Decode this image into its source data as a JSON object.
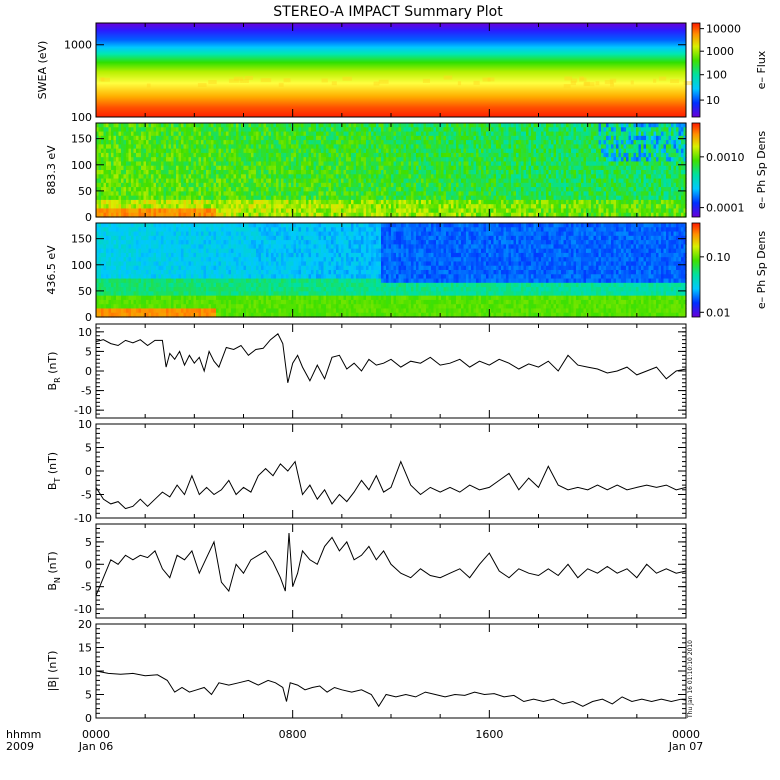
{
  "title": "STEREO-A IMPACT Summary Plot",
  "timestamp": "Thu Jan 16 01:10:10 2010",
  "x_axis": {
    "corner_labels": [
      "hhmm",
      "2009"
    ],
    "ticks": [
      {
        "time": "0000",
        "date": "Jan 06",
        "hour": 0
      },
      {
        "time": "0800",
        "date": "",
        "hour": 8
      },
      {
        "time": "1600",
        "date": "",
        "hour": 16
      },
      {
        "time": "0000",
        "date": "Jan 07",
        "hour": 24
      }
    ],
    "range_hours": [
      0,
      24
    ]
  },
  "colorbars": [
    {
      "label": "e– Flux",
      "ticks": [
        "10000",
        "1000",
        "100",
        "10"
      ]
    },
    {
      "label": "e– Ph Sp Dens",
      "ticks": [
        "0.0010",
        "0.0001"
      ]
    },
    {
      "label": "e– Ph Sp Dens",
      "ticks": [
        "0.10",
        "0.01"
      ]
    }
  ],
  "chart_data": [
    {
      "type": "heatmap",
      "ylabel": "SWEA (eV)",
      "yscale": "log",
      "ylim": [
        100,
        2000
      ],
      "yticks": [
        "1000",
        "100"
      ],
      "colorbar": {
        "label": "e– Flux",
        "scale": "log",
        "range": [
          5,
          15000
        ]
      }
    },
    {
      "type": "heatmap",
      "ylabel": "883.3 eV",
      "ylim": [
        0,
        180
      ],
      "yticks": [
        "150",
        "100",
        "50",
        "0"
      ],
      "colorbar": {
        "label": "e– Ph Sp Dens",
        "scale": "log",
        "range": [
          5e-05,
          0.004
        ]
      }
    },
    {
      "type": "heatmap",
      "ylabel": "436.5 eV",
      "ylim": [
        0,
        180
      ],
      "yticks": [
        "150",
        "100",
        "50",
        "0"
      ],
      "colorbar": {
        "label": "e– Ph Sp Dens",
        "scale": "log",
        "range": [
          0.008,
          0.4
        ]
      }
    },
    {
      "type": "line",
      "ylabel": "B",
      "ylabel_sub": "R",
      "ylabel_unit": "(nT)",
      "ylim": [
        -12,
        12
      ],
      "yticks": [
        "10",
        "5",
        "0",
        "-5",
        "-10"
      ],
      "x": [
        0,
        0.3,
        0.6,
        0.9,
        1.2,
        1.5,
        1.8,
        2.1,
        2.4,
        2.7,
        2.85,
        3.0,
        3.2,
        3.4,
        3.6,
        3.8,
        4.0,
        4.2,
        4.4,
        4.6,
        4.8,
        5.0,
        5.3,
        5.6,
        5.9,
        6.2,
        6.5,
        6.8,
        7.1,
        7.4,
        7.6,
        7.8,
        8.0,
        8.2,
        8.4,
        8.7,
        9.0,
        9.3,
        9.6,
        9.9,
        10.2,
        10.5,
        10.8,
        11.1,
        11.4,
        11.7,
        12.0,
        12.4,
        12.8,
        13.2,
        13.6,
        14.0,
        14.4,
        14.8,
        15.2,
        15.6,
        16.0,
        16.4,
        16.8,
        17.2,
        17.6,
        18.0,
        18.4,
        18.8,
        19.2,
        19.6,
        20.0,
        20.4,
        20.8,
        21.2,
        21.6,
        22.0,
        22.4,
        22.8,
        23.2,
        23.6,
        24.0
      ],
      "y": [
        7.5,
        8.0,
        7.0,
        6.5,
        7.8,
        7.2,
        8.0,
        6.5,
        7.8,
        7.8,
        1.0,
        4.5,
        3.0,
        5.0,
        1.5,
        4.0,
        2.0,
        3.5,
        0.0,
        5.0,
        2.5,
        1.0,
        6.0,
        5.5,
        6.5,
        4.0,
        5.5,
        5.8,
        8.0,
        9.5,
        7.0,
        -3.0,
        2.0,
        4.0,
        1.0,
        -2.5,
        1.5,
        -2.0,
        3.5,
        4.0,
        0.5,
        2.0,
        0.0,
        3.0,
        1.5,
        2.0,
        3.0,
        1.0,
        2.5,
        2.0,
        3.5,
        1.5,
        2.0,
        3.0,
        1.0,
        2.5,
        1.5,
        3.0,
        2.0,
        0.5,
        1.8,
        1.0,
        2.5,
        0.0,
        4.0,
        1.5,
        1.0,
        0.5,
        -0.5,
        0.0,
        1.0,
        -1.0,
        0.0,
        1.0,
        -2.0,
        0.0,
        0.5
      ]
    },
    {
      "type": "line",
      "ylabel": "B",
      "ylabel_sub": "T",
      "ylabel_unit": "(nT)",
      "ylim": [
        -10,
        10
      ],
      "yticks": [
        "10",
        "5",
        "0",
        "-5",
        "-10"
      ],
      "x": [
        0,
        0.3,
        0.6,
        0.9,
        1.2,
        1.5,
        1.8,
        2.1,
        2.4,
        2.7,
        3.0,
        3.3,
        3.6,
        3.9,
        4.2,
        4.5,
        4.8,
        5.1,
        5.4,
        5.7,
        6.0,
        6.3,
        6.6,
        6.9,
        7.2,
        7.5,
        7.8,
        8.1,
        8.4,
        8.7,
        9.0,
        9.3,
        9.6,
        9.9,
        10.2,
        10.5,
        10.8,
        11.1,
        11.4,
        11.7,
        12.0,
        12.4,
        12.8,
        13.2,
        13.6,
        14.0,
        14.4,
        14.8,
        15.2,
        15.6,
        16.0,
        16.4,
        16.8,
        17.2,
        17.6,
        18.0,
        18.4,
        18.8,
        19.2,
        19.6,
        20.0,
        20.4,
        20.8,
        21.2,
        21.6,
        22.0,
        22.4,
        22.8,
        23.2,
        23.6,
        24.0
      ],
      "y": [
        -3.5,
        -6.0,
        -7.0,
        -6.5,
        -8.0,
        -7.5,
        -6.0,
        -7.5,
        -6.0,
        -4.5,
        -5.5,
        -3.0,
        -5.0,
        -1.0,
        -5.0,
        -3.5,
        -5.0,
        -4.0,
        -2.0,
        -5.0,
        -3.5,
        -4.5,
        -1.0,
        0.5,
        -1.0,
        1.5,
        0.0,
        2.0,
        -5.0,
        -3.0,
        -6.0,
        -4.0,
        -7.0,
        -5.0,
        -6.5,
        -4.5,
        -2.0,
        -4.0,
        -1.0,
        -4.5,
        -3.5,
        2.0,
        -3.0,
        -5.0,
        -3.5,
        -4.5,
        -3.5,
        -4.5,
        -3.0,
        -4.0,
        -3.5,
        -2.0,
        -0.5,
        -4.0,
        -1.5,
        -3.5,
        1.0,
        -3.0,
        -4.0,
        -3.5,
        -4.0,
        -3.0,
        -4.0,
        -3.0,
        -4.0,
        -3.5,
        -3.0,
        -3.5,
        -3.0,
        -4.0,
        -3.5
      ]
    },
    {
      "type": "line",
      "ylabel": "B",
      "ylabel_sub": "N",
      "ylabel_unit": "(nT)",
      "ylim": [
        -12,
        9
      ],
      "yticks": [
        "5",
        "0",
        "-5",
        "-10"
      ],
      "x": [
        0,
        0.3,
        0.6,
        0.9,
        1.2,
        1.5,
        1.8,
        2.1,
        2.4,
        2.7,
        3.0,
        3.3,
        3.6,
        3.9,
        4.2,
        4.5,
        4.8,
        5.1,
        5.4,
        5.7,
        6.0,
        6.3,
        6.6,
        6.9,
        7.2,
        7.5,
        7.7,
        7.85,
        8.0,
        8.2,
        8.4,
        8.7,
        9.0,
        9.3,
        9.6,
        9.9,
        10.2,
        10.5,
        10.8,
        11.1,
        11.4,
        11.7,
        12.0,
        12.4,
        12.8,
        13.2,
        13.6,
        14.0,
        14.4,
        14.8,
        15.2,
        15.6,
        16.0,
        16.4,
        16.8,
        17.2,
        17.6,
        18.0,
        18.4,
        18.8,
        19.2,
        19.6,
        20.0,
        20.4,
        20.8,
        21.2,
        21.6,
        22.0,
        22.4,
        22.8,
        23.2,
        23.6,
        24.0
      ],
      "y": [
        -7.0,
        -3.0,
        1.0,
        0.0,
        2.0,
        1.0,
        2.0,
        1.5,
        3.0,
        -1.0,
        -3.0,
        2.0,
        1.0,
        3.0,
        -2.0,
        1.5,
        5.0,
        -4.0,
        -6.0,
        0.0,
        -2.0,
        1.0,
        2.0,
        3.0,
        0.5,
        -3.0,
        -6.0,
        7.0,
        -5.0,
        -2.0,
        3.0,
        1.0,
        0.0,
        4.0,
        6.0,
        3.0,
        5.0,
        1.0,
        2.0,
        4.0,
        1.0,
        3.0,
        0.0,
        -2.0,
        -3.0,
        -1.0,
        -2.5,
        -3.0,
        -2.0,
        -1.0,
        -3.0,
        0.0,
        2.5,
        -1.5,
        -3.0,
        -1.0,
        -2.0,
        -2.5,
        -1.0,
        -2.5,
        0.0,
        -3.0,
        -1.0,
        -2.0,
        -0.5,
        -2.0,
        -1.0,
        -3.0,
        0.0,
        -2.0,
        -1.0,
        -2.0,
        -1.5
      ]
    },
    {
      "type": "line",
      "ylabel": "|B|",
      "ylabel_sub": "",
      "ylabel_unit": "(nT)",
      "ylim": [
        0,
        20
      ],
      "yticks": [
        "20",
        "15",
        "10",
        "5",
        "0"
      ],
      "x": [
        0,
        0.5,
        1.0,
        1.5,
        2.0,
        2.5,
        2.9,
        3.2,
        3.5,
        3.8,
        4.1,
        4.4,
        4.7,
        5.0,
        5.4,
        5.8,
        6.2,
        6.6,
        7.0,
        7.3,
        7.6,
        7.75,
        7.9,
        8.2,
        8.5,
        8.8,
        9.1,
        9.4,
        9.7,
        10.0,
        10.4,
        10.8,
        11.2,
        11.5,
        11.8,
        12.2,
        12.6,
        13.0,
        13.4,
        13.8,
        14.2,
        14.6,
        15.0,
        15.4,
        15.8,
        16.2,
        16.6,
        17.0,
        17.4,
        17.8,
        18.2,
        18.6,
        19.0,
        19.4,
        19.8,
        20.2,
        20.6,
        21.0,
        21.4,
        21.8,
        22.2,
        22.6,
        23.0,
        23.4,
        23.8,
        24.0
      ],
      "y": [
        10.0,
        9.5,
        9.3,
        9.5,
        9.0,
        9.2,
        8.0,
        5.5,
        6.5,
        5.5,
        6.0,
        6.5,
        5.0,
        7.5,
        7.0,
        7.5,
        8.0,
        7.0,
        8.0,
        7.5,
        6.5,
        3.5,
        7.5,
        7.0,
        6.0,
        6.5,
        6.8,
        5.5,
        6.5,
        6.0,
        5.5,
        6.0,
        5.0,
        2.5,
        5.0,
        4.5,
        5.0,
        4.5,
        5.5,
        5.0,
        4.5,
        5.0,
        4.8,
        5.5,
        5.0,
        5.2,
        4.5,
        4.8,
        3.5,
        4.0,
        3.5,
        4.0,
        3.0,
        3.5,
        2.5,
        3.5,
        4.0,
        3.0,
        4.5,
        3.5,
        4.0,
        3.5,
        4.0,
        3.5,
        4.0,
        3.8
      ]
    }
  ]
}
